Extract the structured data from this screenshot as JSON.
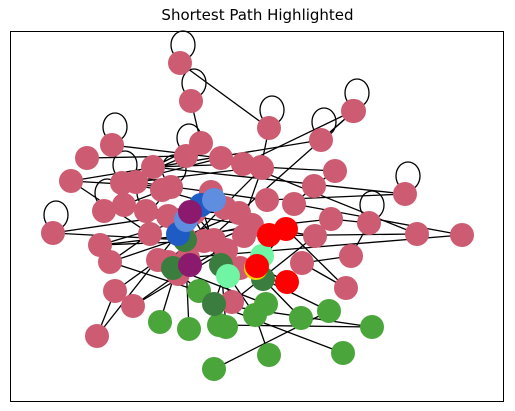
{
  "title": "Shortest Path Highlighted",
  "colors": {
    "default_node": "#cd5c72",
    "green_node": "#4aa63a",
    "dark_green_node": "#3a7d3f",
    "path_node": "#ff0000",
    "blue_node": "#1f5bc4",
    "light_blue_node": "#5f8de0",
    "purple_node": "#8b1a6e",
    "mint_node": "#6ff5a3",
    "yellow_node": "#f0d500",
    "edge": "#000000"
  },
  "nodes": [
    {
      "id": "n1",
      "color": "default",
      "self_loop": true
    },
    {
      "id": "n2",
      "color": "default",
      "self_loop": true
    },
    {
      "id": "n3",
      "color": "default",
      "self_loop": true
    },
    {
      "id": "n4",
      "color": "default",
      "self_loop": false
    },
    {
      "id": "n5",
      "color": "default",
      "self_loop": true
    },
    {
      "id": "n6",
      "color": "default",
      "self_loop": true
    },
    {
      "id": "n7",
      "color": "default",
      "self_loop": false
    },
    {
      "id": "n8",
      "color": "default",
      "self_loop": false
    },
    {
      "id": "n9",
      "color": "default",
      "self_loop": false
    },
    {
      "id": "n10",
      "color": "default",
      "self_loop": true
    },
    {
      "id": "n11",
      "color": "default",
      "self_loop": false
    },
    {
      "id": "n12",
      "color": "default",
      "self_loop": false
    },
    {
      "id": "n13",
      "color": "default",
      "self_loop": false
    },
    {
      "id": "n14",
      "color": "default",
      "self_loop": false
    },
    {
      "id": "n15",
      "color": "default",
      "self_loop": false
    },
    {
      "id": "n16",
      "color": "default",
      "self_loop": true
    },
    {
      "id": "n17",
      "color": "default",
      "self_loop": false
    },
    {
      "id": "n18",
      "color": "default",
      "self_loop": false
    },
    {
      "id": "n19",
      "color": "default",
      "self_loop": true
    },
    {
      "id": "n20",
      "color": "default",
      "self_loop": false
    },
    {
      "id": "n21",
      "color": "default",
      "self_loop": true
    },
    {
      "id": "n22",
      "color": "default",
      "self_loop": false
    },
    {
      "id": "n23",
      "color": "default",
      "self_loop": false
    },
    {
      "id": "n24",
      "color": "default",
      "self_loop": false
    },
    {
      "id": "n25",
      "color": "default",
      "self_loop": true
    },
    {
      "id": "n26",
      "color": "default",
      "self_loop": false
    },
    {
      "id": "n27",
      "color": "default",
      "self_loop": true
    },
    {
      "id": "n28",
      "color": "default",
      "self_loop": false
    },
    {
      "id": "n29",
      "color": "default",
      "self_loop": false
    },
    {
      "id": "n30",
      "color": "default",
      "self_loop": false
    },
    {
      "id": "n31",
      "color": "default",
      "self_loop": false
    },
    {
      "id": "n32",
      "color": "default",
      "self_loop": true
    },
    {
      "id": "n33",
      "color": "default",
      "self_loop": false
    },
    {
      "id": "n34",
      "color": "default",
      "self_loop": false
    },
    {
      "id": "n35",
      "color": "default",
      "self_loop": true
    },
    {
      "id": "n36",
      "color": "default",
      "self_loop": false
    },
    {
      "id": "n37",
      "color": "default",
      "self_loop": false
    },
    {
      "id": "n38",
      "color": "default",
      "self_loop": false
    },
    {
      "id": "n39",
      "color": "default",
      "self_loop": false
    },
    {
      "id": "n40",
      "color": "default",
      "self_loop": false
    },
    {
      "id": "n41",
      "color": "default",
      "self_loop": false
    },
    {
      "id": "n42",
      "color": "default",
      "self_loop": false
    },
    {
      "id": "n43",
      "color": "default",
      "self_loop": false
    },
    {
      "id": "n44",
      "color": "default",
      "self_loop": false
    },
    {
      "id": "n45",
      "color": "default",
      "self_loop": false
    },
    {
      "id": "n46",
      "color": "default",
      "self_loop": false
    },
    {
      "id": "n47",
      "color": "default",
      "self_loop": false
    },
    {
      "id": "n48",
      "color": "default",
      "self_loop": false
    },
    {
      "id": "n49",
      "color": "default",
      "self_loop": false
    },
    {
      "id": "n50",
      "color": "default",
      "self_loop": false
    },
    {
      "id": "n51",
      "color": "default",
      "self_loop": false
    },
    {
      "id": "n52",
      "color": "default",
      "self_loop": true
    },
    {
      "id": "n53",
      "color": "default",
      "self_loop": false
    },
    {
      "id": "n54",
      "color": "default",
      "self_loop": false
    },
    {
      "id": "n55",
      "color": "default",
      "self_loop": false
    },
    {
      "id": "n56",
      "color": "default",
      "self_loop": false
    },
    {
      "id": "n57",
      "color": "default",
      "self_loop": false
    },
    {
      "id": "n58",
      "color": "default",
      "self_loop": false
    },
    {
      "id": "n59",
      "color": "default",
      "self_loop": false
    },
    {
      "id": "n60",
      "color": "default",
      "self_loop": false
    },
    {
      "id": "g1",
      "color": "green",
      "self_loop": false
    },
    {
      "id": "g2",
      "color": "green",
      "self_loop": false
    },
    {
      "id": "g3",
      "color": "green",
      "self_loop": false
    },
    {
      "id": "g4",
      "color": "green",
      "self_loop": false
    },
    {
      "id": "g5",
      "color": "green",
      "self_loop": false
    },
    {
      "id": "g6",
      "color": "green",
      "self_loop": false
    },
    {
      "id": "g7",
      "color": "green",
      "self_loop": false
    },
    {
      "id": "g8",
      "color": "green",
      "self_loop": false
    },
    {
      "id": "g9",
      "color": "green",
      "self_loop": false
    },
    {
      "id": "g10",
      "color": "green",
      "self_loop": false
    },
    {
      "id": "g11",
      "color": "green",
      "self_loop": false
    },
    {
      "id": "g12",
      "color": "green",
      "self_loop": false
    },
    {
      "id": "g13",
      "color": "green",
      "self_loop": false
    },
    {
      "id": "dg1",
      "color": "dark_green",
      "self_loop": false
    },
    {
      "id": "dg2",
      "color": "dark_green",
      "self_loop": false
    },
    {
      "id": "dg3",
      "color": "dark_green",
      "self_loop": false
    },
    {
      "id": "dg4",
      "color": "dark_green",
      "self_loop": false
    },
    {
      "id": "dg5",
      "color": "dark_green",
      "self_loop": false
    },
    {
      "id": "b1",
      "color": "blue",
      "self_loop": false
    },
    {
      "id": "b2",
      "color": "blue",
      "self_loop": false
    },
    {
      "id": "lb1",
      "color": "light_blue",
      "self_loop": false
    },
    {
      "id": "lb2",
      "color": "light_blue",
      "self_loop": false
    },
    {
      "id": "pu1",
      "color": "purple",
      "self_loop": false
    },
    {
      "id": "pu2",
      "color": "purple",
      "self_loop": false
    },
    {
      "id": "m1",
      "color": "mint",
      "self_loop": false
    },
    {
      "id": "m2",
      "color": "mint",
      "self_loop": false
    },
    {
      "id": "y1",
      "color": "yellow",
      "self_loop": false
    },
    {
      "id": "r1",
      "color": "path",
      "self_loop": false
    },
    {
      "id": "r2",
      "color": "path",
      "self_loop": false
    },
    {
      "id": "r3",
      "color": "path",
      "self_loop": false
    },
    {
      "id": "r4",
      "color": "path",
      "self_loop": false
    }
  ],
  "edges": [
    [
      "n1",
      "n3"
    ],
    [
      "n2",
      "n7"
    ],
    [
      "n3",
      "n13"
    ],
    [
      "n4",
      "n12"
    ],
    [
      "n5",
      "n11"
    ],
    [
      "n6",
      "n15"
    ],
    [
      "n7",
      "n16"
    ],
    [
      "n8",
      "n10"
    ],
    [
      "n9",
      "n12"
    ],
    [
      "n10",
      "n16"
    ],
    [
      "n11",
      "n16"
    ],
    [
      "n12",
      "n33"
    ],
    [
      "n13",
      "n17"
    ],
    [
      "n14",
      "n18"
    ],
    [
      "n15",
      "n21"
    ],
    [
      "n16",
      "n20"
    ],
    [
      "n17",
      "n22"
    ],
    [
      "n18",
      "n24"
    ],
    [
      "n19",
      "n23"
    ],
    [
      "n20",
      "n29"
    ],
    [
      "n21",
      "n26"
    ],
    [
      "n22",
      "n23"
    ],
    [
      "n24",
      "n34"
    ],
    [
      "n25",
      "n29"
    ],
    [
      "n26",
      "n41"
    ],
    [
      "n27",
      "n30"
    ],
    [
      "n28",
      "n35"
    ],
    [
      "n29",
      "n36"
    ],
    [
      "n30",
      "n38"
    ],
    [
      "n31",
      "n36"
    ],
    [
      "n32",
      "n44"
    ],
    [
      "n33",
      "n40"
    ],
    [
      "n34",
      "n43"
    ],
    [
      "n35",
      "n39"
    ],
    [
      "n36",
      "n39"
    ],
    [
      "n37",
      "n42"
    ],
    [
      "n38",
      "n42"
    ],
    [
      "n39",
      "n46"
    ],
    [
      "n40",
      "n46"
    ],
    [
      "n41",
      "n47"
    ],
    [
      "n42",
      "n47"
    ],
    [
      "n43",
      "n48"
    ],
    [
      "n44",
      "n45"
    ],
    [
      "n45",
      "n49"
    ],
    [
      "n46",
      "n50"
    ],
    [
      "n47",
      "b1"
    ],
    [
      "n48",
      "n51"
    ],
    [
      "n49",
      "r2"
    ],
    [
      "n50",
      "n53"
    ],
    [
      "n51",
      "n54"
    ],
    [
      "n52",
      "n56"
    ],
    [
      "n53",
      "n57"
    ],
    [
      "n54",
      "n57"
    ],
    [
      "n55",
      "n58"
    ],
    [
      "n56",
      "n58"
    ],
    [
      "n57",
      "n59"
    ],
    [
      "n58",
      "n60"
    ],
    [
      "n59",
      "dg1"
    ],
    [
      "n60",
      "dg2"
    ],
    [
      "b1",
      "b2"
    ],
    [
      "b2",
      "lb1"
    ],
    [
      "lb1",
      "lb2"
    ],
    [
      "lb2",
      "pu1"
    ],
    [
      "pu1",
      "pu2"
    ],
    [
      "pu2",
      "m1"
    ],
    [
      "m1",
      "m2"
    ],
    [
      "m2",
      "y1"
    ],
    [
      "y1",
      "r1"
    ],
    [
      "r1",
      "r2"
    ],
    [
      "r2",
      "r3"
    ],
    [
      "r3",
      "r4"
    ],
    [
      "dg1",
      "g1"
    ],
    [
      "dg1",
      "g2"
    ],
    [
      "dg2",
      "g3"
    ],
    [
      "dg2",
      "g4"
    ],
    [
      "dg3",
      "g5"
    ],
    [
      "dg3",
      "g6"
    ],
    [
      "dg4",
      "g7"
    ],
    [
      "dg4",
      "g8"
    ],
    [
      "dg5",
      "g9"
    ],
    [
      "dg5",
      "g10"
    ],
    [
      "g6",
      "g11"
    ],
    [
      "g8",
      "g12"
    ],
    [
      "g9",
      "g13"
    ],
    [
      "dg3",
      "m2"
    ],
    [
      "dg4",
      "r4"
    ],
    [
      "dg5",
      "n55"
    ],
    [
      "n13",
      "n14"
    ],
    [
      "n9",
      "n19"
    ],
    [
      "n27",
      "n28"
    ],
    [
      "n31",
      "n32"
    ],
    [
      "n37",
      "n15"
    ],
    [
      "n52",
      "n6"
    ]
  ]
}
